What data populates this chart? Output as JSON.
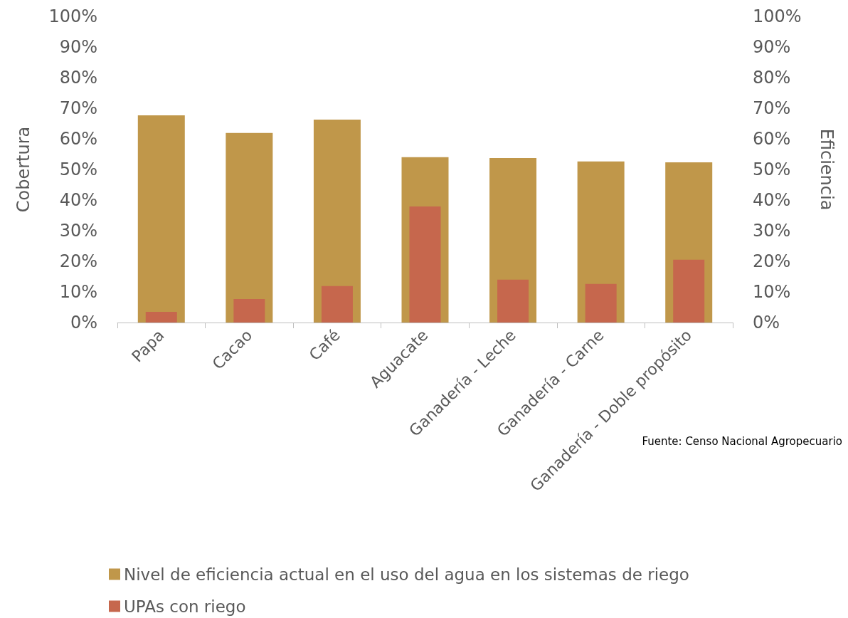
{
  "chart_data": {
    "type": "bar",
    "categories": [
      "Papa",
      "Cacao",
      "Café",
      "Aguacate",
      "Ganadería - Leche",
      "Ganadería - Carne",
      "Ganadería - Doble propósito"
    ],
    "series": [
      {
        "name": "Nivel de eficiencia actual en el uso del agua en los sistemas de riego",
        "color": "#c0974a",
        "axis": "y2",
        "values": [
          67.7,
          61.9,
          66.3,
          54.0,
          53.7,
          52.6,
          52.3
        ]
      },
      {
        "name": "UPAs con riego",
        "color": "#c6674d",
        "values": [
          3.5,
          7.7,
          11.9,
          37.9,
          14.0,
          12.6,
          20.5
        ]
      }
    ],
    "ylabel": "Cobertura",
    "y2label": "Eficiencia",
    "ylim": [
      0,
      100
    ],
    "yticks": [
      {
        "value": 0,
        "label": "0%"
      },
      {
        "value": 10,
        "label": "10%"
      },
      {
        "value": 20,
        "label": "20%"
      },
      {
        "value": 30,
        "label": "30%"
      },
      {
        "value": 40,
        "label": "40%"
      },
      {
        "value": 50,
        "label": "50%"
      },
      {
        "value": 60,
        "label": "60%"
      },
      {
        "value": 70,
        "label": "70%"
      },
      {
        "value": 80,
        "label": "80%"
      },
      {
        "value": 90,
        "label": "90%"
      },
      {
        "value": 100,
        "label": "100%"
      }
    ],
    "y2lim": [
      0,
      100
    ],
    "y2ticks": [
      {
        "value": 0,
        "label": "0%"
      },
      {
        "value": 10,
        "label": "10%"
      },
      {
        "value": 20,
        "label": "20%"
      },
      {
        "value": 30,
        "label": "30%"
      },
      {
        "value": 40,
        "label": "40%"
      },
      {
        "value": 50,
        "label": "50%"
      },
      {
        "value": 60,
        "label": "60%"
      },
      {
        "value": 70,
        "label": "70%"
      },
      {
        "value": 80,
        "label": "80%"
      },
      {
        "value": 90,
        "label": "90%"
      },
      {
        "value": 100,
        "label": "100%"
      }
    ],
    "legend": "bottom left",
    "annotations": [
      "Fuente: Censo Nacional Agropecuario"
    ]
  }
}
